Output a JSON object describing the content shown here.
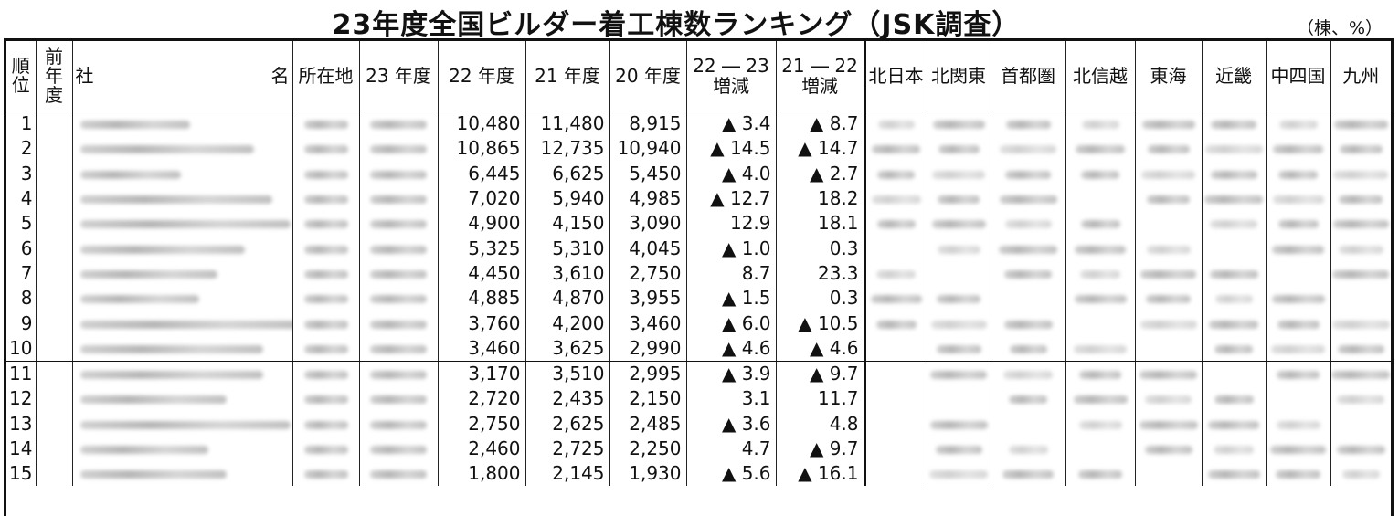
{
  "title": "23年度全国ビルダー着工棟数ランキング（JSK調査）",
  "unit": "（棟、%）",
  "headers": {
    "rank": "順位",
    "prev_rank": "前年度",
    "company_left": "社",
    "company_right": "名",
    "location": "所在地",
    "fy23": "23 年度",
    "fy22": "22 年度",
    "fy21": "21 年度",
    "fy20": "20 年度",
    "chg2223_a": "22 ― 23",
    "chg2223_b": "増減",
    "chg2122_a": "21 ― 22",
    "chg2122_b": "増減",
    "regions": [
      "北日本",
      "北関東",
      "首都圏",
      "北信越",
      "東海",
      "近畿",
      "中四国",
      "九州"
    ]
  },
  "rows": [
    {
      "rank": "1",
      "fy22": "10,480",
      "fy21": "11,480",
      "fy20": "8,915",
      "c2223": "▲ 3.4",
      "c2122": "▲ 8.7"
    },
    {
      "rank": "2",
      "fy22": "10,865",
      "fy21": "12,735",
      "fy20": "10,940",
      "c2223": "▲ 14.5",
      "c2122": "▲ 14.7"
    },
    {
      "rank": "3",
      "fy22": "6,445",
      "fy21": "6,625",
      "fy20": "5,450",
      "c2223": "▲ 4.0",
      "c2122": "▲ 2.7"
    },
    {
      "rank": "4",
      "fy22": "7,020",
      "fy21": "5,940",
      "fy20": "4,985",
      "c2223": "▲ 12.7",
      "c2122": "18.2"
    },
    {
      "rank": "5",
      "fy22": "4,900",
      "fy21": "4,150",
      "fy20": "3,090",
      "c2223": "12.9",
      "c2122": "18.1"
    },
    {
      "rank": "6",
      "fy22": "5,325",
      "fy21": "5,310",
      "fy20": "4,045",
      "c2223": "▲ 1.0",
      "c2122": "0.3"
    },
    {
      "rank": "7",
      "fy22": "4,450",
      "fy21": "3,610",
      "fy20": "2,750",
      "c2223": "8.7",
      "c2122": "23.3"
    },
    {
      "rank": "8",
      "fy22": "4,885",
      "fy21": "4,870",
      "fy20": "3,955",
      "c2223": "▲ 1.5",
      "c2122": "0.3"
    },
    {
      "rank": "9",
      "fy22": "3,760",
      "fy21": "4,200",
      "fy20": "3,460",
      "c2223": "▲ 6.0",
      "c2122": "▲ 10.5"
    },
    {
      "rank": "10",
      "fy22": "3,460",
      "fy21": "3,625",
      "fy20": "2,990",
      "c2223": "▲ 4.6",
      "c2122": "▲ 4.6"
    },
    {
      "rank": "11",
      "fy22": "3,170",
      "fy21": "3,510",
      "fy20": "2,995",
      "c2223": "▲ 3.9",
      "c2122": "▲ 9.7"
    },
    {
      "rank": "12",
      "fy22": "2,720",
      "fy21": "2,435",
      "fy20": "2,150",
      "c2223": "3.1",
      "c2122": "11.7"
    },
    {
      "rank": "13",
      "fy22": "2,750",
      "fy21": "2,625",
      "fy20": "2,485",
      "c2223": "▲ 3.6",
      "c2122": "4.8"
    },
    {
      "rank": "14",
      "fy22": "2,460",
      "fy21": "2,725",
      "fy20": "2,250",
      "c2223": "4.7",
      "c2122": "▲ 9.7"
    },
    {
      "rank": "15",
      "fy22": "1,800",
      "fy21": "2,145",
      "fy20": "1,930",
      "c2223": "▲ 5.6",
      "c2122": "▲ 16.1"
    }
  ]
}
